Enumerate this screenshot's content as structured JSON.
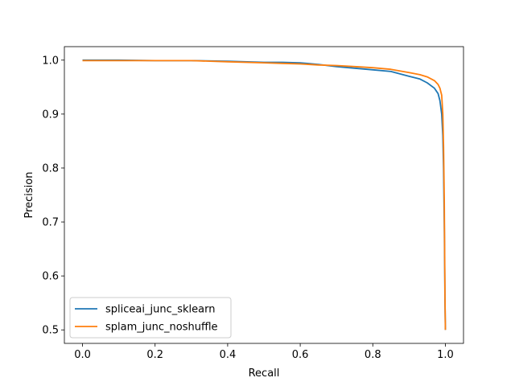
{
  "chart_data": {
    "type": "line",
    "xlabel": "Recall",
    "ylabel": "Precision",
    "xlim": [
      -0.05,
      1.05
    ],
    "ylim": [
      0.475,
      1.025
    ],
    "xticks": [
      0.0,
      0.2,
      0.4,
      0.6,
      0.8,
      1.0
    ],
    "xtick_labels": [
      "0.0",
      "0.2",
      "0.4",
      "0.6",
      "0.8",
      "1.0"
    ],
    "yticks": [
      0.5,
      0.6,
      0.7,
      0.8,
      0.9,
      1.0
    ],
    "ytick_labels": [
      "0.5",
      "0.6",
      "0.7",
      "0.8",
      "0.9",
      "1.0"
    ],
    "grid": false,
    "legend_position": "lower-left",
    "series": [
      {
        "name": "spliceai_junc_sklearn",
        "color": "#1f77b4",
        "x": [
          0.0,
          0.1,
          0.2,
          0.3,
          0.4,
          0.5,
          0.55,
          0.6,
          0.65,
          0.7,
          0.75,
          0.8,
          0.85,
          0.9,
          0.93,
          0.95,
          0.97,
          0.98,
          0.985,
          0.99,
          0.993,
          0.995,
          0.997,
          0.998,
          0.999,
          1.0
        ],
        "y": [
          1.0,
          1.0,
          0.999,
          0.999,
          0.998,
          0.996,
          0.996,
          0.995,
          0.992,
          0.988,
          0.985,
          0.982,
          0.979,
          0.97,
          0.965,
          0.958,
          0.948,
          0.938,
          0.925,
          0.9,
          0.86,
          0.8,
          0.7,
          0.62,
          0.55,
          0.5
        ]
      },
      {
        "name": "splam_junc_noshuffle",
        "color": "#ff7f0e",
        "x": [
          0.0,
          0.1,
          0.2,
          0.3,
          0.4,
          0.5,
          0.55,
          0.6,
          0.65,
          0.7,
          0.75,
          0.8,
          0.85,
          0.9,
          0.93,
          0.95,
          0.97,
          0.98,
          0.985,
          0.99,
          0.993,
          0.995,
          0.997,
          0.998,
          0.999,
          1.0
        ],
        "y": [
          0.999,
          0.999,
          0.999,
          0.999,
          0.997,
          0.995,
          0.994,
          0.993,
          0.991,
          0.99,
          0.988,
          0.986,
          0.983,
          0.977,
          0.973,
          0.969,
          0.962,
          0.955,
          0.948,
          0.935,
          0.9,
          0.84,
          0.74,
          0.64,
          0.56,
          0.5
        ]
      }
    ]
  }
}
